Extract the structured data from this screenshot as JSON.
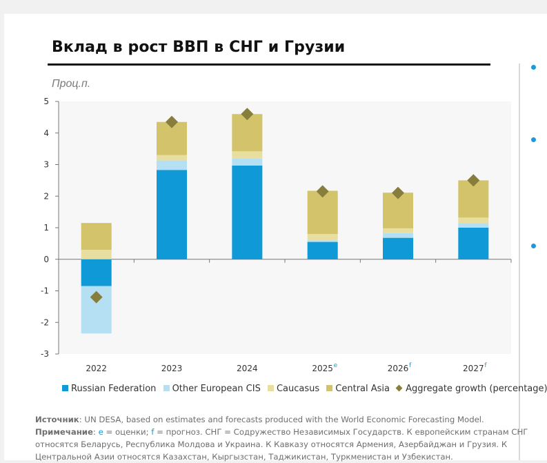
{
  "title": "Вклад в рост ВВП в СНГ и Грузии",
  "unit_label": "Проц.п.",
  "chart_data": {
    "type": "bar",
    "stacked": true,
    "categories": [
      "2022",
      "2023",
      "2024",
      "2025",
      "2026",
      "2027"
    ],
    "category_superscripts": [
      "",
      "",
      "",
      "e",
      "f",
      "f"
    ],
    "series": [
      {
        "name": "Russian Federation",
        "color": "#0f9ad7",
        "values": [
          -0.85,
          2.83,
          2.97,
          0.55,
          0.68,
          1.0
        ]
      },
      {
        "name": "Other European CIS",
        "color": "#b5dff2",
        "values": [
          -1.5,
          0.3,
          0.22,
          0.05,
          0.15,
          0.15
        ]
      },
      {
        "name": "Caucasus",
        "color": "#e8dea0",
        "values": [
          0.3,
          0.17,
          0.23,
          0.2,
          0.15,
          0.17
        ]
      },
      {
        "name": "Central Asia",
        "color": "#d3c46b",
        "values": [
          0.85,
          1.05,
          1.18,
          1.37,
          1.13,
          1.18
        ]
      }
    ],
    "aggregate": {
      "name": "Aggregate growth (percentage)",
      "color": "#877d3c",
      "values": [
        -1.2,
        4.35,
        4.6,
        2.15,
        2.1,
        2.5
      ]
    },
    "ylim": [
      -3,
      5
    ],
    "yticks": [
      "5",
      "4",
      "3",
      "2",
      "1",
      "0",
      "-1",
      "-2",
      "-3"
    ],
    "grid": false,
    "legend_position": "bottom"
  },
  "notes": {
    "source_label": "Источник",
    "source_text": ": UN DESA, based on estimates and forecasts produced with the World Economic Forecasting Model.",
    "note_label": "Примечание",
    "note_part1": ": ",
    "note_e": "e",
    "note_part2": " = оценки; ",
    "note_f": "f",
    "note_part3": " = прогноз. СНГ = Содружество Независимых Государств. К европейским странам СНГ относятся Беларусь, Республика Молдова и Украина. К Кавказу относятся Армения, Азербайджан и Грузия. К Центральной Азии относятся Казахстан, Кыргызстан, Таджикистан, Туркменистан и Узбекистан."
  }
}
